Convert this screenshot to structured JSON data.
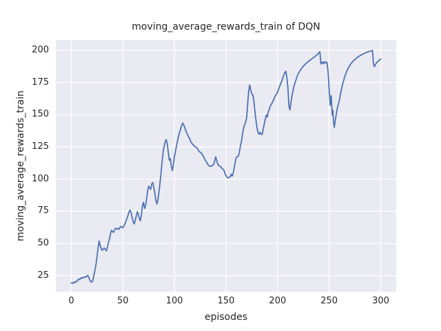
{
  "colors": {
    "figure_bg": "#FFFFFF",
    "plot_bg": "#EAEAF2",
    "grid": "#FFFFFF",
    "line": "#4C72B0",
    "text": "#262626"
  },
  "chart_data": {
    "type": "line",
    "title": "moving_average_rewards_train of DQN",
    "xlabel": "episodes",
    "ylabel": "moving_average_rewards_train",
    "legend_position": "none",
    "grid": true,
    "xlim": [
      -15,
      315
    ],
    "ylim": [
      12.5,
      208
    ],
    "xticks": [
      0,
      50,
      100,
      150,
      200,
      250,
      300
    ],
    "yticks": [
      25,
      50,
      75,
      100,
      125,
      150,
      175,
      200
    ],
    "series": [
      {
        "name": "moving_average_rewards_train",
        "color": "#4C72B0",
        "points": [
          [
            0,
            19.4
          ],
          [
            1,
            19.0
          ],
          [
            2,
            19.8
          ],
          [
            3,
            19.3
          ],
          [
            4,
            20.4
          ],
          [
            5,
            20.2
          ],
          [
            6,
            21.2
          ],
          [
            7,
            22.3
          ],
          [
            8,
            21.8
          ],
          [
            9,
            22.8
          ],
          [
            10,
            23.4
          ],
          [
            11,
            22.9
          ],
          [
            12,
            23.8
          ],
          [
            13,
            24.1
          ],
          [
            14,
            23.6
          ],
          [
            15,
            24.6
          ],
          [
            16,
            25.2
          ],
          [
            17,
            23.4
          ],
          [
            18,
            21.5
          ],
          [
            19,
            20.3
          ],
          [
            20,
            19.9
          ],
          [
            21,
            21.5
          ],
          [
            22,
            25.5
          ],
          [
            23,
            29.5
          ],
          [
            24,
            34.0
          ],
          [
            25,
            40.0
          ],
          [
            26,
            46.5
          ],
          [
            27,
            51.8
          ],
          [
            28,
            48.5
          ],
          [
            29,
            46.0
          ],
          [
            30,
            44.6
          ],
          [
            31,
            45.6
          ],
          [
            32,
            46.5
          ],
          [
            33,
            45.2
          ],
          [
            34,
            44.2
          ],
          [
            35,
            47.0
          ],
          [
            36,
            50.5
          ],
          [
            37,
            53.5
          ],
          [
            38,
            57.5
          ],
          [
            39,
            60.2
          ],
          [
            40,
            59.2
          ],
          [
            41,
            58.6
          ],
          [
            42,
            60.5
          ],
          [
            43,
            61.8
          ],
          [
            44,
            61.2
          ],
          [
            45,
            61.6
          ],
          [
            46,
            60.9
          ],
          [
            47,
            62.1
          ],
          [
            48,
            63.2
          ],
          [
            49,
            62.6
          ],
          [
            50,
            62.2
          ],
          [
            51,
            63.6
          ],
          [
            52,
            65.2
          ],
          [
            53,
            67.2
          ],
          [
            54,
            69.5
          ],
          [
            55,
            71.8
          ],
          [
            56,
            74.6
          ],
          [
            57,
            75.9
          ],
          [
            58,
            73.8
          ],
          [
            59,
            70.2
          ],
          [
            60,
            66.8
          ],
          [
            61,
            65.1
          ],
          [
            62,
            68.0
          ],
          [
            63,
            71.2
          ],
          [
            64,
            74.6
          ],
          [
            65,
            72.8
          ],
          [
            66,
            69.3
          ],
          [
            67,
            67.6
          ],
          [
            68,
            72.5
          ],
          [
            69,
            79.5
          ],
          [
            70,
            81.9
          ],
          [
            71,
            77.2
          ],
          [
            72,
            79.0
          ],
          [
            73,
            84.5
          ],
          [
            74,
            90.5
          ],
          [
            75,
            94.5
          ],
          [
            76,
            93.0
          ],
          [
            77,
            92.0
          ],
          [
            78,
            96.2
          ],
          [
            79,
            97.2
          ],
          [
            80,
            93.5
          ],
          [
            81,
            89.0
          ],
          [
            82,
            83.5
          ],
          [
            83,
            80.6
          ],
          [
            84,
            84.0
          ],
          [
            85,
            90.0
          ],
          [
            86,
            97.0
          ],
          [
            87,
            104.5
          ],
          [
            88,
            113.5
          ],
          [
            89,
            120.5
          ],
          [
            90,
            125.5
          ],
          [
            91,
            128.8
          ],
          [
            92,
            130.6
          ],
          [
            93,
            127.5
          ],
          [
            94,
            121.0
          ],
          [
            95,
            114.6
          ],
          [
            96,
            115.8
          ],
          [
            97,
            110.2
          ],
          [
            98,
            106.6
          ],
          [
            99,
            111.0
          ],
          [
            100,
            117.4
          ],
          [
            101,
            121.8
          ],
          [
            102,
            125.8
          ],
          [
            103,
            129.8
          ],
          [
            104,
            133.4
          ],
          [
            105,
            136.2
          ],
          [
            106,
            139.0
          ],
          [
            107,
            141.6
          ],
          [
            108,
            143.5
          ],
          [
            109,
            142.2
          ],
          [
            110,
            139.8
          ],
          [
            112,
            135.6
          ],
          [
            114,
            132.4
          ],
          [
            115,
            130.9
          ],
          [
            116,
            128.9
          ],
          [
            118,
            126.6
          ],
          [
            120,
            125.2
          ],
          [
            122,
            124.1
          ],
          [
            124,
            121.3
          ],
          [
            126,
            120.3
          ],
          [
            128,
            117.6
          ],
          [
            130,
            114.4
          ],
          [
            131,
            113.2
          ],
          [
            133,
            110.6
          ],
          [
            134,
            110.1
          ],
          [
            135,
            109.8
          ],
          [
            136,
            110.2
          ],
          [
            137,
            110.7
          ],
          [
            138,
            111.4
          ],
          [
            139,
            113.8
          ],
          [
            140,
            117.2
          ],
          [
            141,
            114.4
          ],
          [
            142,
            111.5
          ],
          [
            143,
            110.5
          ],
          [
            144,
            109.9
          ],
          [
            145,
            109.6
          ],
          [
            146,
            108.4
          ],
          [
            147,
            107.6
          ],
          [
            148,
            106.9
          ],
          [
            149,
            104.4
          ],
          [
            150,
            102.6
          ],
          [
            151,
            101.4
          ],
          [
            152,
            100.8
          ],
          [
            153,
            101.3
          ],
          [
            154,
            101.6
          ],
          [
            155,
            103.8
          ],
          [
            156,
            102.3
          ],
          [
            157,
            104.5
          ],
          [
            158,
            109.0
          ],
          [
            159,
            113.5
          ],
          [
            160,
            117.0
          ],
          [
            161,
            117.4
          ],
          [
            162,
            117.8
          ],
          [
            163,
            121.0
          ],
          [
            164,
            126.0
          ],
          [
            165,
            129.4
          ],
          [
            166,
            135.0
          ],
          [
            167,
            139.6
          ],
          [
            168,
            142.0
          ],
          [
            169,
            144.4
          ],
          [
            170,
            147.6
          ],
          [
            171,
            158.5
          ],
          [
            172,
            168.5
          ],
          [
            173,
            173.1
          ],
          [
            174,
            169.0
          ],
          [
            175,
            166.2
          ],
          [
            176,
            165.2
          ],
          [
            177,
            161.0
          ],
          [
            178,
            152.6
          ],
          [
            179,
            146.0
          ],
          [
            180,
            140.1
          ],
          [
            181,
            136.4
          ],
          [
            182,
            134.8
          ],
          [
            183,
            136.2
          ],
          [
            184,
            134.9
          ],
          [
            185,
            134.6
          ],
          [
            186,
            138.4
          ],
          [
            187,
            142.6
          ],
          [
            188,
            146.1
          ],
          [
            189,
            149.7
          ],
          [
            190,
            148.1
          ],
          [
            191,
            152.4
          ],
          [
            192,
            154.2
          ],
          [
            193,
            156.9
          ],
          [
            194,
            158.1
          ],
          [
            195,
            159.6
          ],
          [
            196,
            161.4
          ],
          [
            197,
            163.2
          ],
          [
            198,
            164.9
          ],
          [
            199,
            166.1
          ],
          [
            200,
            167.6
          ],
          [
            201,
            169.9
          ],
          [
            202,
            172.1
          ],
          [
            203,
            173.9
          ],
          [
            204,
            176.1
          ],
          [
            205,
            178.4
          ],
          [
            206,
            180.7
          ],
          [
            207,
            182.8
          ],
          [
            208,
            183.7
          ],
          [
            209,
            178.6
          ],
          [
            210,
            171.0
          ],
          [
            211,
            156.5
          ],
          [
            212,
            153.6
          ],
          [
            213,
            160.0
          ],
          [
            214,
            164.6
          ],
          [
            215,
            168.9
          ],
          [
            216,
            172.4
          ],
          [
            217,
            174.9
          ],
          [
            218,
            177.4
          ],
          [
            219,
            179.8
          ],
          [
            220,
            181.8
          ],
          [
            222,
            184.4
          ],
          [
            224,
            186.8
          ],
          [
            226,
            188.6
          ],
          [
            228,
            190.1
          ],
          [
            230,
            191.4
          ],
          [
            232,
            192.7
          ],
          [
            234,
            193.9
          ],
          [
            236,
            195.1
          ],
          [
            238,
            196.3
          ],
          [
            240,
            198.1
          ],
          [
            241,
            198.9
          ],
          [
            242,
            189.4
          ],
          [
            243,
            190.9
          ],
          [
            244,
            189.6
          ],
          [
            245,
            191.1
          ],
          [
            246,
            189.9
          ],
          [
            247,
            191.0
          ],
          [
            248,
            190.2
          ],
          [
            249,
            183.0
          ],
          [
            250,
            169.8
          ],
          [
            251,
            157.2
          ],
          [
            252,
            164.8
          ],
          [
            253,
            149.9
          ],
          [
            253.5,
            153.4
          ],
          [
            254.5,
            142.6
          ],
          [
            255,
            140.2
          ],
          [
            256,
            145.8
          ],
          [
            257,
            150.8
          ],
          [
            258,
            155.6
          ],
          [
            259,
            158.2
          ],
          [
            260,
            161.8
          ],
          [
            261,
            166.2
          ],
          [
            262,
            170.0
          ],
          [
            263,
            173.6
          ],
          [
            264,
            176.4
          ],
          [
            265,
            179.2
          ],
          [
            266,
            181.6
          ],
          [
            267,
            183.6
          ],
          [
            268,
            185.4
          ],
          [
            269,
            186.9
          ],
          [
            270,
            188.3
          ],
          [
            272,
            190.5
          ],
          [
            274,
            192.2
          ],
          [
            276,
            193.6
          ],
          [
            278,
            194.8
          ],
          [
            280,
            195.9
          ],
          [
            282,
            196.8
          ],
          [
            284,
            197.6
          ],
          [
            286,
            198.3
          ],
          [
            288,
            198.9
          ],
          [
            290,
            199.4
          ],
          [
            292,
            199.8
          ],
          [
            293,
            189.0
          ],
          [
            294,
            187.3
          ],
          [
            295,
            189.2
          ],
          [
            296,
            190.4
          ],
          [
            297,
            191.2
          ],
          [
            298,
            191.9
          ],
          [
            299,
            192.5
          ],
          [
            300,
            193.3
          ]
        ]
      }
    ]
  }
}
